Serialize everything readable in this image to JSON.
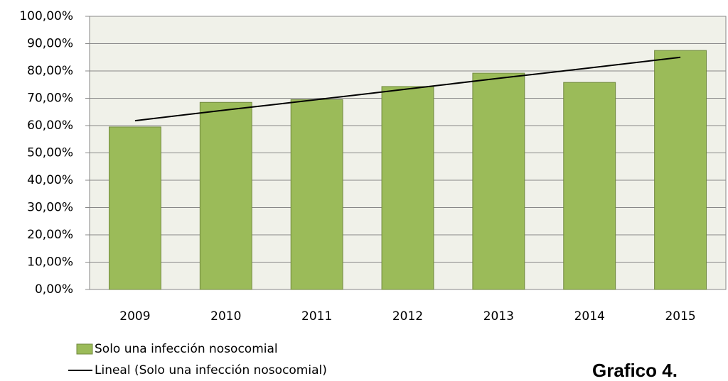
{
  "chart_data": {
    "type": "bar",
    "categories": [
      "2009",
      "2010",
      "2011",
      "2012",
      "2013",
      "2014",
      "2015"
    ],
    "series": [
      {
        "name": "Solo una infección nosocomial",
        "color": "#9bbb59",
        "values": [
          59.5,
          68.5,
          69.5,
          74.3,
          79.2,
          75.8,
          87.5
        ]
      }
    ],
    "trendline": {
      "name": "Lineal (Solo una infección nosocomial)",
      "color": "#000000",
      "values": [
        61.8,
        65.7,
        69.5,
        73.4,
        77.3,
        81.1,
        85.0
      ]
    },
    "ylim": [
      0,
      100
    ],
    "yticks": [
      {
        "value": 0,
        "label": "0,00%"
      },
      {
        "value": 10,
        "label": "10,00%"
      },
      {
        "value": 20,
        "label": "20,00%"
      },
      {
        "value": 30,
        "label": "30,00%"
      },
      {
        "value": 40,
        "label": "40,00%"
      },
      {
        "value": 50,
        "label": "50,00%"
      },
      {
        "value": 60,
        "label": "60,00%"
      },
      {
        "value": 70,
        "label": "70,00%"
      },
      {
        "value": 80,
        "label": "80,00%"
      },
      {
        "value": 90,
        "label": "90,00%"
      },
      {
        "value": 100,
        "label": "100,00%"
      }
    ],
    "grid": true,
    "legend": "bottom-left",
    "annotation": "Grafico 4."
  }
}
